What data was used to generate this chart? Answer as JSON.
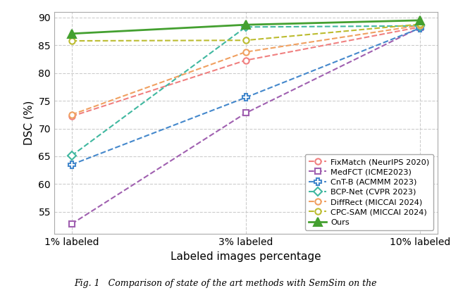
{
  "x_positions": [
    0,
    1,
    2
  ],
  "x_labels": [
    "1% labeled",
    "3% labeled",
    "10% labeled"
  ],
  "series": [
    {
      "label": "FixMatch (NeurIPS 2020)",
      "values": [
        72.2,
        82.3,
        88.3
      ],
      "color": "#F08080",
      "marker": "o",
      "linestyle": "--",
      "linewidth": 1.5,
      "markersize": 6,
      "fillstyle": "none"
    },
    {
      "label": "MedFCT (ICME2023)",
      "values": [
        52.8,
        72.8,
        88.2
      ],
      "color": "#A060B0",
      "marker": "s",
      "linestyle": "--",
      "linewidth": 1.5,
      "markersize": 6,
      "fillstyle": "none"
    },
    {
      "label": "CnT-B (ACMMM 2023)",
      "values": [
        63.5,
        75.6,
        88.1
      ],
      "color": "#4488CC",
      "marker": "P",
      "linestyle": "--",
      "linewidth": 1.5,
      "markersize": 7,
      "fillstyle": "none"
    },
    {
      "label": "BCP-Net (CVPR 2023)",
      "values": [
        65.1,
        88.3,
        88.5
      ],
      "color": "#40B8A0",
      "marker": "D",
      "linestyle": "--",
      "linewidth": 1.5,
      "markersize": 6,
      "fillstyle": "none"
    },
    {
      "label": "DiffRect (MICCAI 2024)",
      "values": [
        72.5,
        83.8,
        88.6
      ],
      "color": "#F0A060",
      "marker": "o",
      "linestyle": "--",
      "linewidth": 1.5,
      "markersize": 6,
      "fillstyle": "none"
    },
    {
      "label": "CPC-SAM (MICCAI 2024)",
      "values": [
        85.8,
        85.9,
        88.8
      ],
      "color": "#BCBC30",
      "marker": "o",
      "linestyle": "--",
      "linewidth": 1.5,
      "markersize": 6,
      "fillstyle": "none"
    },
    {
      "label": "Ours",
      "values": [
        87.1,
        88.7,
        89.5
      ],
      "color": "#44A030",
      "marker": "^",
      "linestyle": "-",
      "linewidth": 2.0,
      "markersize": 8,
      "fillstyle": "full"
    }
  ],
  "ylabel": "DSC (%)",
  "xlabel": "Labeled images percentage",
  "ylim": [
    51,
    91
  ],
  "yticks": [
    55,
    60,
    65,
    70,
    75,
    80,
    85,
    90
  ],
  "grid_color": "#CCCCCC",
  "background_color": "#FFFFFF",
  "caption": "Fig. 1   Comparison of state of the art methods with SemSim on the"
}
